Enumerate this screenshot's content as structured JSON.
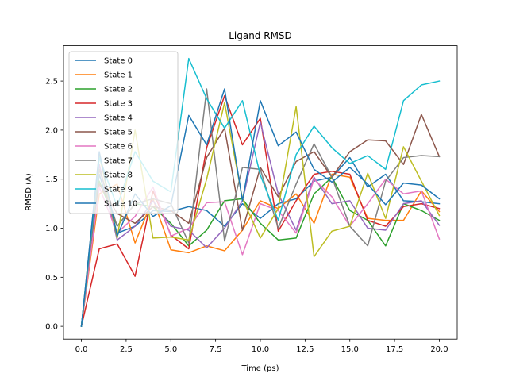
{
  "chart_data": {
    "type": "line",
    "title": "Ligand RMSD",
    "xlabel": "Time (ps)",
    "ylabel": "RMSD (A)",
    "xlim": [
      -1,
      21
    ],
    "ylim": [
      -0.13,
      2.86
    ],
    "xticks": [
      0,
      2.5,
      5,
      7.5,
      10,
      12.5,
      15,
      17.5,
      20
    ],
    "xtick_labels": [
      "0.0",
      "2.5",
      "5.0",
      "7.5",
      "10.0",
      "12.5",
      "15.0",
      "17.5",
      "20.0"
    ],
    "yticks": [
      0,
      0.5,
      1,
      1.5,
      2,
      2.5
    ],
    "ytick_labels": [
      "0.0",
      "0.5",
      "1.0",
      "1.5",
      "2.0",
      "2.5"
    ],
    "legend_position": "top-left",
    "grid": false,
    "x": [
      0,
      1,
      2,
      3,
      4,
      5,
      6,
      7,
      8,
      9,
      10,
      11,
      12,
      13,
      14,
      15,
      16,
      17,
      18,
      19,
      20
    ],
    "series": [
      {
        "name": "State 0",
        "color": "#1f77b4",
        "values": [
          0.0,
          1.55,
          0.95,
          1.02,
          1.18,
          1.17,
          1.22,
          1.18,
          1.02,
          1.25,
          1.1,
          1.25,
          1.3,
          1.48,
          1.52,
          1.72,
          1.42,
          1.55,
          1.28,
          1.27,
          1.25
        ]
      },
      {
        "name": "State 1",
        "color": "#ff7f0e",
        "values": [
          0.0,
          1.35,
          1.45,
          0.85,
          1.3,
          0.78,
          0.75,
          0.82,
          0.77,
          0.98,
          1.28,
          1.2,
          1.35,
          1.05,
          1.55,
          1.52,
          1.1,
          1.08,
          1.08,
          1.38,
          1.17
        ]
      },
      {
        "name": "State 2",
        "color": "#2ca02c",
        "values": [
          0.0,
          1.48,
          1.02,
          1.25,
          1.22,
          1.05,
          0.82,
          0.98,
          1.28,
          1.3,
          1.05,
          0.88,
          0.9,
          1.35,
          1.52,
          1.18,
          1.08,
          0.82,
          1.25,
          1.18,
          1.08
        ]
      },
      {
        "name": "State 3",
        "color": "#d62728",
        "values": [
          0.0,
          0.79,
          0.84,
          0.51,
          1.38,
          0.93,
          0.79,
          1.82,
          2.35,
          1.85,
          2.12,
          0.97,
          1.28,
          1.55,
          1.58,
          1.55,
          1.08,
          1.02,
          1.22,
          1.25,
          1.2
        ]
      },
      {
        "name": "State 4",
        "color": "#9467bd",
        "values": [
          0.0,
          1.65,
          0.88,
          1.02,
          1.28,
          1.02,
          0.98,
          0.8,
          1.0,
          1.28,
          2.08,
          1.35,
          0.98,
          1.52,
          1.25,
          1.28,
          1.0,
          0.98,
          1.25,
          1.28,
          1.03
        ]
      },
      {
        "name": "State 5",
        "color": "#8c564b",
        "values": [
          0.0,
          1.45,
          1.15,
          1.05,
          1.22,
          1.18,
          1.05,
          1.72,
          2.02,
          0.98,
          1.62,
          1.32,
          1.68,
          1.78,
          1.52,
          1.78,
          1.9,
          1.89,
          1.65,
          2.16,
          1.73
        ]
      },
      {
        "name": "State 6",
        "color": "#e377c2",
        "values": [
          0.0,
          1.42,
          0.95,
          1.12,
          1.42,
          0.92,
          1.0,
          1.26,
          1.27,
          0.73,
          1.25,
          1.18,
          0.95,
          1.5,
          1.32,
          1.02,
          1.25,
          1.5,
          1.35,
          1.38,
          0.89
        ]
      },
      {
        "name": "State 7",
        "color": "#7f7f7f",
        "values": [
          0.0,
          1.6,
          1.02,
          1.25,
          1.3,
          1.25,
          0.85,
          2.42,
          0.87,
          1.62,
          1.6,
          1.0,
          1.45,
          1.86,
          1.52,
          1.02,
          0.82,
          1.48,
          1.72,
          1.74,
          1.73
        ]
      },
      {
        "name": "State 8",
        "color": "#bcbd22",
        "values": [
          0.0,
          1.75,
          0.9,
          2.0,
          0.9,
          0.91,
          0.88,
          1.5,
          2.28,
          1.3,
          0.9,
          1.2,
          2.24,
          0.71,
          0.97,
          1.02,
          1.56,
          1.1,
          1.83,
          1.48,
          1.13
        ]
      },
      {
        "name": "State 9",
        "color": "#17becf",
        "values": [
          0.0,
          1.72,
          1.22,
          1.78,
          1.48,
          1.37,
          2.73,
          2.32,
          2.02,
          2.3,
          1.54,
          1.08,
          1.75,
          2.04,
          1.82,
          1.66,
          1.74,
          1.6,
          2.3,
          2.46,
          2.5
        ]
      },
      {
        "name": "State 10",
        "color": "#1f77b4",
        "values": [
          0.0,
          1.78,
          0.92,
          1.35,
          1.12,
          1.23,
          2.15,
          1.85,
          2.42,
          1.28,
          2.3,
          1.84,
          1.98,
          1.6,
          1.47,
          1.62,
          1.45,
          1.24,
          1.46,
          1.44,
          1.3
        ]
      }
    ]
  }
}
